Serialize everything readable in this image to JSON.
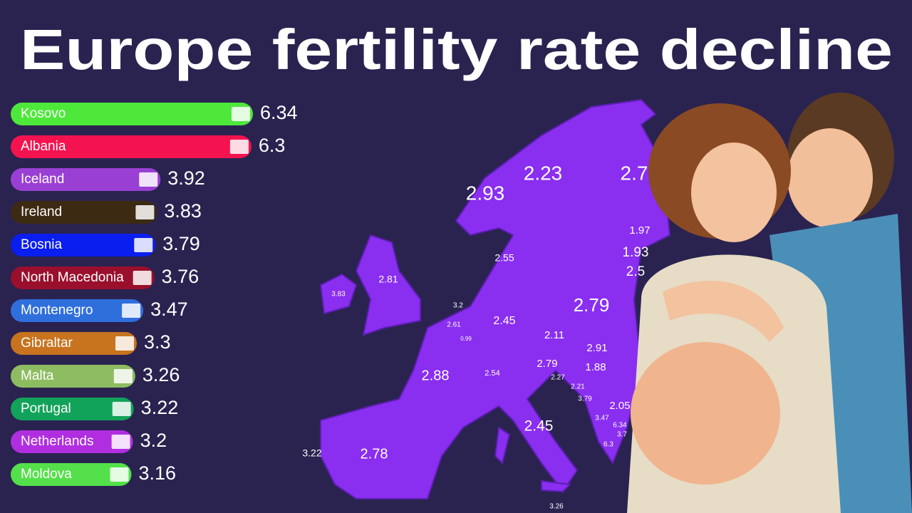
{
  "title": "Europe fertility rate decline",
  "chart_data": {
    "type": "bar",
    "orientation": "horizontal",
    "categories": [
      "Kosovo",
      "Albania",
      "Iceland",
      "Ireland",
      "Bosnia",
      "North Macedonia",
      "Montenegro",
      "Gibraltar",
      "Malta",
      "Portugal",
      "Netherlands",
      "Moldova"
    ],
    "values": [
      6.34,
      6.3,
      3.92,
      3.83,
      3.79,
      3.76,
      3.47,
      3.3,
      3.26,
      3.22,
      3.2,
      3.16
    ],
    "colors": [
      "#4ee83a",
      "#f5134f",
      "#9a3fd4",
      "#3d2a12",
      "#0a1ef0",
      "#9a0f2c",
      "#2f6fdc",
      "#c8731e",
      "#8dbd60",
      "#12a35a",
      "#b02ee0",
      "#54e04a"
    ]
  },
  "map": {
    "labels": [
      "2.93",
      "2.23",
      "2.7",
      "1.97",
      "1.93",
      "2.5",
      "2.55",
      "2.81",
      "3.83",
      "2.79",
      "3.2",
      "2.61",
      "2.45",
      "0.99",
      "2.11",
      "2.91",
      "2.88",
      "2.54",
      "2.79",
      "1.88",
      "2.27",
      "2.21",
      "3.79",
      "2.05",
      "3.47",
      "6.34",
      "3.7",
      "6.3",
      "2.45",
      "3.22",
      "2.78",
      "3.26"
    ]
  }
}
